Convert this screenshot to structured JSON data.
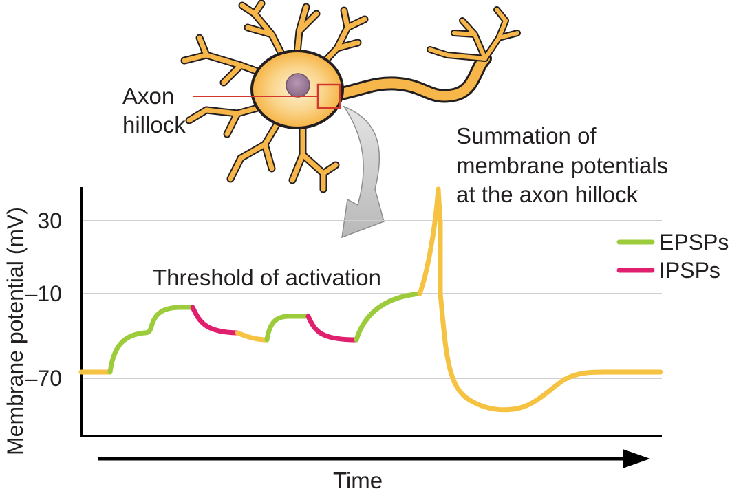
{
  "diagram": {
    "neuron_label_line1": "Axon",
    "neuron_label_line2": "hillock",
    "summation_line1": "Summation of",
    "summation_line2": "membrane potentials",
    "summation_line3": "at the axon hillock",
    "threshold_label": "Threshold of activation",
    "ylabel": "Membrane potential (mV)",
    "xlabel": "Time",
    "yticks": [
      "30",
      "–10",
      "–70"
    ],
    "legend": [
      {
        "label": "EPSPs",
        "color": "#9ccc3c"
      },
      {
        "label": "IPSPs",
        "color": "#e0206e"
      }
    ],
    "colors": {
      "trace": "#f5c242",
      "epsp": "#9ccc3c",
      "ipsp": "#e0206e",
      "neuron_fill": "#f6b64a",
      "neuron_outline": "#231f20",
      "nucleus": "#a07e9c",
      "hillock_marker": "#d3382f",
      "gridline": "#cfcfcf"
    }
  }
}
